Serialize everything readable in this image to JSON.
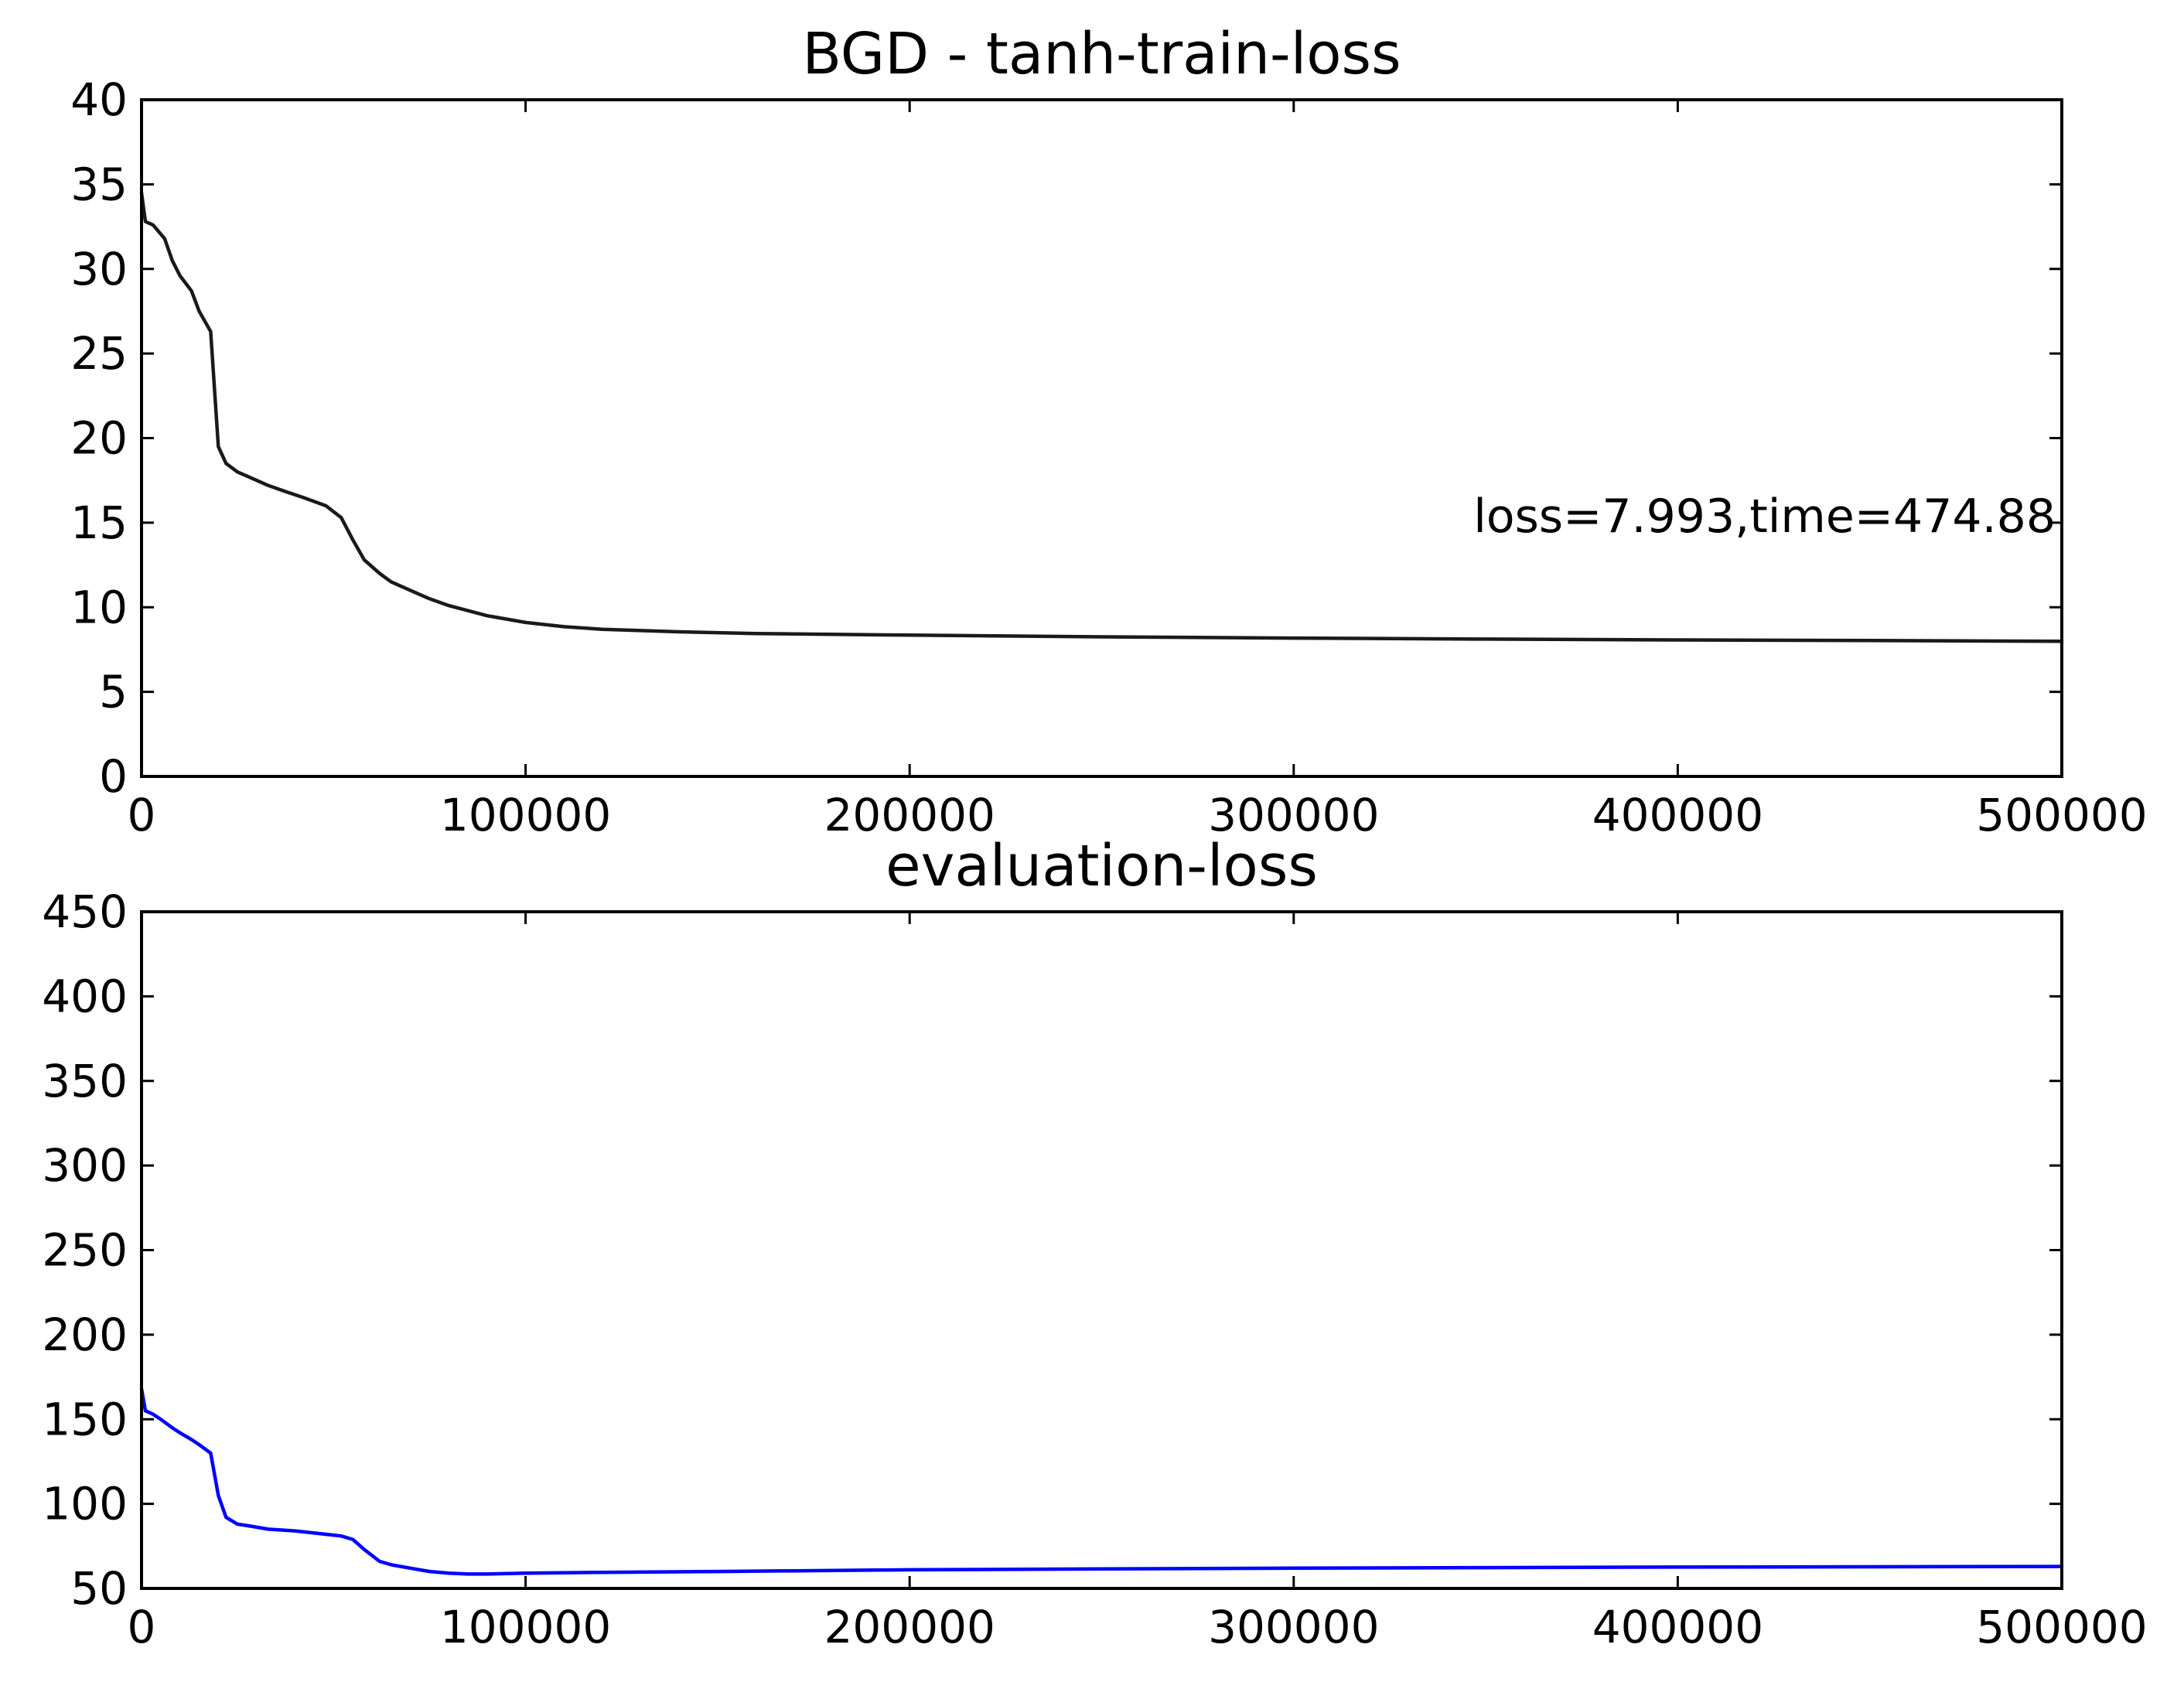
{
  "chart_data": [
    {
      "type": "line",
      "title": "BGD - tanh-train-loss",
      "xlabel": "",
      "ylabel": "",
      "xlim": [
        0,
        500000
      ],
      "ylim": [
        0,
        40
      ],
      "xticks": [
        "0",
        "100000",
        "200000",
        "300000",
        "400000",
        "500000"
      ],
      "yticks": [
        "0",
        "5",
        "10",
        "15",
        "20",
        "25",
        "30",
        "35",
        "40"
      ],
      "grid": false,
      "annotation": "loss=7.993,time=474.88",
      "series": [
        {
          "color": "#1a1a1a",
          "x": [
            0,
            1000,
            3000,
            6000,
            8000,
            10000,
            13000,
            15000,
            18000,
            20000,
            22000,
            25000,
            28000,
            33000,
            38000,
            42000,
            48000,
            52000,
            55000,
            58000,
            62000,
            65000,
            70000,
            75000,
            80000,
            90000,
            100000,
            110000,
            120000,
            140000,
            160000,
            200000,
            250000,
            300000,
            350000,
            400000,
            450000,
            500000
          ],
          "y": [
            34.5,
            32.8,
            32.6,
            31.8,
            30.5,
            29.6,
            28.7,
            27.5,
            26.3,
            19.5,
            18.5,
            18.0,
            17.7,
            17.2,
            16.8,
            16.5,
            16.0,
            15.3,
            14.0,
            12.8,
            12.0,
            11.5,
            11.0,
            10.5,
            10.1,
            9.5,
            9.1,
            8.85,
            8.7,
            8.55,
            8.45,
            8.35,
            8.25,
            8.18,
            8.12,
            8.07,
            8.03,
            7.99
          ]
        }
      ]
    },
    {
      "type": "line",
      "title": "evaluation-loss",
      "xlabel": "",
      "ylabel": "",
      "xlim": [
        0,
        500000
      ],
      "ylim": [
        50,
        450
      ],
      "xticks": [
        "0",
        "100000",
        "200000",
        "300000",
        "400000",
        "500000"
      ],
      "yticks": [
        "50",
        "100",
        "150",
        "200",
        "250",
        "300",
        "350",
        "400",
        "450"
      ],
      "grid": false,
      "series": [
        {
          "color": "#0000ff",
          "x": [
            0,
            1000,
            3000,
            5000,
            8000,
            10000,
            13000,
            15000,
            18000,
            20000,
            22000,
            25000,
            28000,
            33000,
            40000,
            48000,
            52000,
            55000,
            58000,
            62000,
            65000,
            70000,
            75000,
            80000,
            85000,
            90000,
            100000,
            120000,
            150000,
            200000,
            250000,
            300000,
            350000,
            400000,
            450000,
            500000
          ],
          "y": [
            168,
            155,
            153,
            150,
            145,
            142,
            138,
            135,
            130,
            105,
            92,
            88,
            87,
            85,
            84,
            82,
            81,
            79,
            73,
            66,
            64,
            62,
            60,
            59,
            58.5,
            58.5,
            59,
            59.5,
            60,
            61,
            61.5,
            62,
            62.3,
            62.6,
            62.8,
            63
          ]
        }
      ]
    }
  ]
}
